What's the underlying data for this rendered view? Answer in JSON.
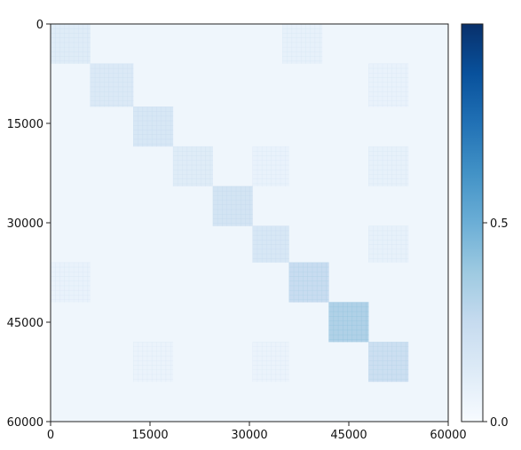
{
  "chart_data": {
    "type": "heatmap",
    "title": "",
    "xlabel": "",
    "ylabel": "",
    "xlim": [
      0,
      60000
    ],
    "ylim": [
      60000,
      0
    ],
    "x_ticks": [
      0,
      15000,
      30000,
      45000,
      60000
    ],
    "y_ticks": [
      0,
      15000,
      30000,
      45000,
      60000
    ],
    "x_tick_labels": [
      "0",
      "15000",
      "30000",
      "45000",
      "60000"
    ],
    "y_tick_labels": [
      "0",
      "15000",
      "30000",
      "45000",
      "60000"
    ],
    "background_value": 0.04,
    "diagonal_blocks": [
      {
        "start": 0,
        "end": 6000,
        "value": 0.12
      },
      {
        "start": 6000,
        "end": 12500,
        "value": 0.14
      },
      {
        "start": 12500,
        "end": 18500,
        "value": 0.16
      },
      {
        "start": 18500,
        "end": 24500,
        "value": 0.12
      },
      {
        "start": 24500,
        "end": 30500,
        "value": 0.18
      },
      {
        "start": 30500,
        "end": 36000,
        "value": 0.16
      },
      {
        "start": 36000,
        "end": 42000,
        "value": 0.24
      },
      {
        "start": 42000,
        "end": 48000,
        "value": 0.32
      },
      {
        "start": 48000,
        "end": 54000,
        "value": 0.22
      }
    ],
    "offdiagonal_blocks": [
      {
        "x": [
          35000,
          41000
        ],
        "y": [
          0,
          6000
        ],
        "value": 0.08
      },
      {
        "x": [
          48000,
          54000
        ],
        "y": [
          6000,
          12500
        ],
        "value": 0.07
      },
      {
        "x": [
          30500,
          36000
        ],
        "y": [
          18500,
          24500
        ],
        "value": 0.07
      },
      {
        "x": [
          48000,
          54000
        ],
        "y": [
          18500,
          24500
        ],
        "value": 0.08
      },
      {
        "x": [
          48000,
          54000
        ],
        "y": [
          30500,
          36000
        ],
        "value": 0.08
      },
      {
        "x": [
          0,
          6000
        ],
        "y": [
          36000,
          42000
        ],
        "value": 0.07
      },
      {
        "x": [
          12500,
          18500
        ],
        "y": [
          48000,
          54000
        ],
        "value": 0.06
      },
      {
        "x": [
          30500,
          36000
        ],
        "y": [
          48000,
          54000
        ],
        "value": 0.06
      }
    ],
    "colorbar": {
      "colormap": "Blues",
      "min": 0.0,
      "max": 1.0,
      "ticks": [
        0.0,
        0.5
      ],
      "tick_labels": [
        "0.0",
        "0.5"
      ]
    },
    "grid": false
  }
}
